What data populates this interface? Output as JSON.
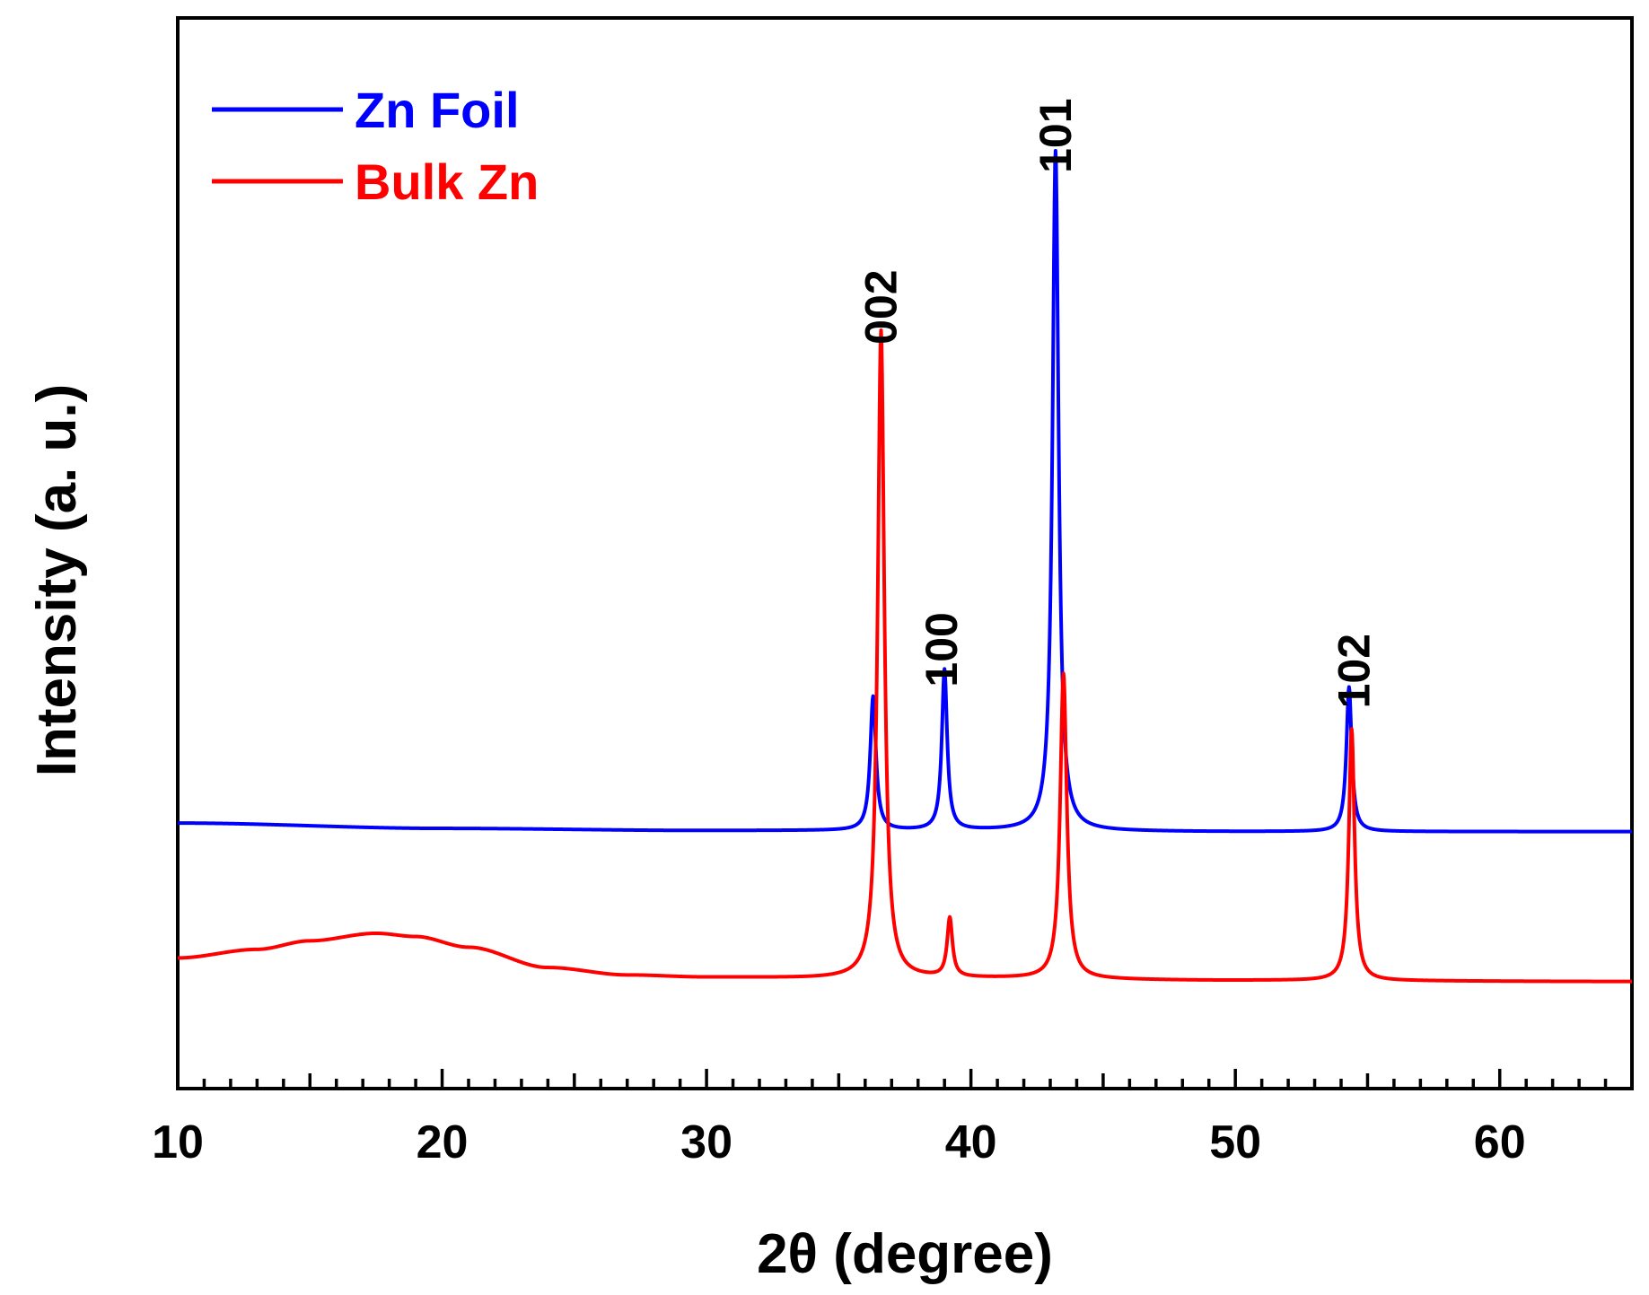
{
  "chart_data": {
    "type": "line",
    "title": "",
    "xlabel": "2θ (degree)",
    "ylabel": "Intensity (a. u.)",
    "xlim": [
      10,
      65
    ],
    "ylim": [
      0,
      100
    ],
    "y_ticks_shown": false,
    "x_major_ticks": [
      10,
      20,
      30,
      40,
      50,
      60
    ],
    "x_tick_labels": [
      "10",
      "20",
      "30",
      "40",
      "50",
      "60"
    ],
    "x_minor_step": 1,
    "grid": false,
    "legend_position": "top-left",
    "series": [
      {
        "name": "Zn Foil",
        "color": "#0000ff",
        "baseline": [
          [
            10,
            24.8
          ],
          [
            20,
            24.3
          ],
          [
            30,
            24.1
          ],
          [
            40,
            24.1
          ],
          [
            50,
            24.0
          ],
          [
            65,
            24.0
          ]
        ],
        "peaks": [
          {
            "x": 36.3,
            "height": 12.5,
            "width": 0.13
          },
          {
            "x": 39.0,
            "height": 15.0,
            "width": 0.12
          },
          {
            "x": 43.2,
            "height": 63.5,
            "width": 0.14
          },
          {
            "x": 54.3,
            "height": 13.5,
            "width": 0.12
          }
        ]
      },
      {
        "name": "Bulk Zn",
        "color": "#ff0000",
        "baseline": [
          [
            10,
            12.2
          ],
          [
            13,
            13.0
          ],
          [
            15,
            13.8
          ],
          [
            17.5,
            14.5
          ],
          [
            19,
            14.2
          ],
          [
            21,
            13.2
          ],
          [
            24,
            11.3
          ],
          [
            27,
            10.6
          ],
          [
            30,
            10.4
          ],
          [
            35,
            10.3
          ],
          [
            40,
            10.3
          ],
          [
            50,
            10.1
          ],
          [
            65,
            10.0
          ]
        ],
        "peaks": [
          {
            "x": 36.6,
            "height": 60.5,
            "width": 0.15
          },
          {
            "x": 39.2,
            "height": 5.5,
            "width": 0.12
          },
          {
            "x": 43.5,
            "height": 28.5,
            "width": 0.15
          },
          {
            "x": 54.4,
            "height": 23.5,
            "width": 0.13
          }
        ]
      }
    ],
    "annotations": [
      {
        "text": "002",
        "x": 36.6,
        "y": 73
      },
      {
        "text": "100",
        "x": 38.9,
        "y": 41
      },
      {
        "text": "101",
        "x": 43.2,
        "y": 89
      },
      {
        "text": "102",
        "x": 54.5,
        "y": 39
      }
    ]
  }
}
